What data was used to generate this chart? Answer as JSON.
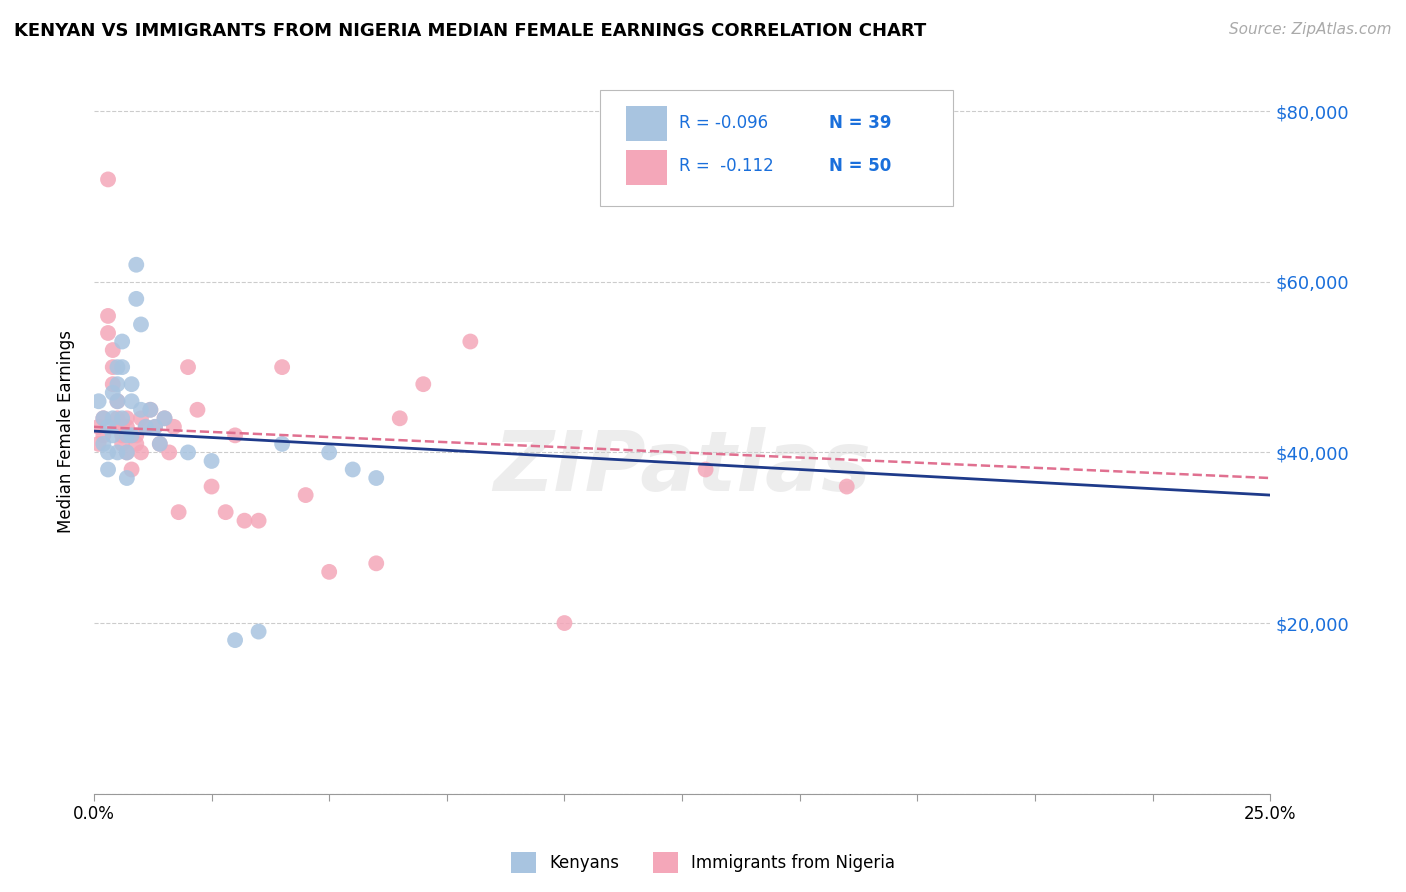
{
  "title": "KENYAN VS IMMIGRANTS FROM NIGERIA MEDIAN FEMALE EARNINGS CORRELATION CHART",
  "source": "Source: ZipAtlas.com",
  "ylabel": "Median Female Earnings",
  "yticks": [
    0,
    20000,
    40000,
    60000,
    80000
  ],
  "ytick_labels_right": [
    "",
    "$20,000",
    "$40,000",
    "$60,000",
    "$80,000"
  ],
  "xlim": [
    0.0,
    0.25
  ],
  "ylim": [
    0,
    85000
  ],
  "color_kenyan": "#a8c4e0",
  "color_nigeria": "#f4a7b9",
  "line_color_kenyan": "#1e3a8a",
  "line_color_nigeria": "#e07090",
  "watermark": "ZIPatlas",
  "legend_label_kenyan": "Kenyans",
  "legend_label_nigeria": "Immigrants from Nigeria",
  "legend_R1": "R = -0.096",
  "legend_N1": "N = 39",
  "legend_R2": "R =  -0.112",
  "legend_N2": "N = 50",
  "line_k_x0": 0.0,
  "line_k_y0": 42500,
  "line_k_x1": 0.25,
  "line_k_y1": 35000,
  "line_n_x0": 0.0,
  "line_n_y0": 43000,
  "line_n_x1": 0.25,
  "line_n_y1": 37000,
  "kenyan_x": [
    0.001,
    0.002,
    0.002,
    0.003,
    0.003,
    0.003,
    0.004,
    0.004,
    0.004,
    0.005,
    0.005,
    0.005,
    0.005,
    0.006,
    0.006,
    0.006,
    0.007,
    0.007,
    0.007,
    0.008,
    0.008,
    0.008,
    0.009,
    0.009,
    0.01,
    0.01,
    0.011,
    0.012,
    0.013,
    0.014,
    0.015,
    0.02,
    0.025,
    0.03,
    0.035,
    0.04,
    0.05,
    0.055,
    0.06
  ],
  "kenyan_y": [
    46000,
    44000,
    41000,
    43000,
    40000,
    38000,
    47000,
    44000,
    42000,
    50000,
    48000,
    46000,
    40000,
    53000,
    50000,
    44000,
    42000,
    40000,
    37000,
    48000,
    46000,
    42000,
    62000,
    58000,
    55000,
    45000,
    43000,
    45000,
    43000,
    41000,
    44000,
    40000,
    39000,
    18000,
    19000,
    41000,
    40000,
    38000,
    37000
  ],
  "nigeria_x": [
    0.001,
    0.001,
    0.002,
    0.002,
    0.003,
    0.003,
    0.003,
    0.004,
    0.004,
    0.004,
    0.005,
    0.005,
    0.005,
    0.006,
    0.006,
    0.006,
    0.007,
    0.007,
    0.007,
    0.008,
    0.008,
    0.009,
    0.009,
    0.01,
    0.01,
    0.011,
    0.012,
    0.013,
    0.014,
    0.015,
    0.016,
    0.017,
    0.018,
    0.02,
    0.022,
    0.025,
    0.028,
    0.03,
    0.032,
    0.035,
    0.04,
    0.045,
    0.05,
    0.06,
    0.065,
    0.07,
    0.08,
    0.1,
    0.13,
    0.16
  ],
  "nigeria_y": [
    43000,
    41000,
    44000,
    42000,
    54000,
    56000,
    72000,
    52000,
    50000,
    48000,
    44000,
    46000,
    43000,
    43000,
    41000,
    42000,
    44000,
    43000,
    40000,
    42000,
    38000,
    41000,
    42000,
    44000,
    40000,
    43000,
    45000,
    43000,
    41000,
    44000,
    40000,
    43000,
    33000,
    50000,
    45000,
    36000,
    33000,
    42000,
    32000,
    32000,
    50000,
    35000,
    26000,
    27000,
    44000,
    48000,
    53000,
    20000,
    38000,
    36000
  ]
}
